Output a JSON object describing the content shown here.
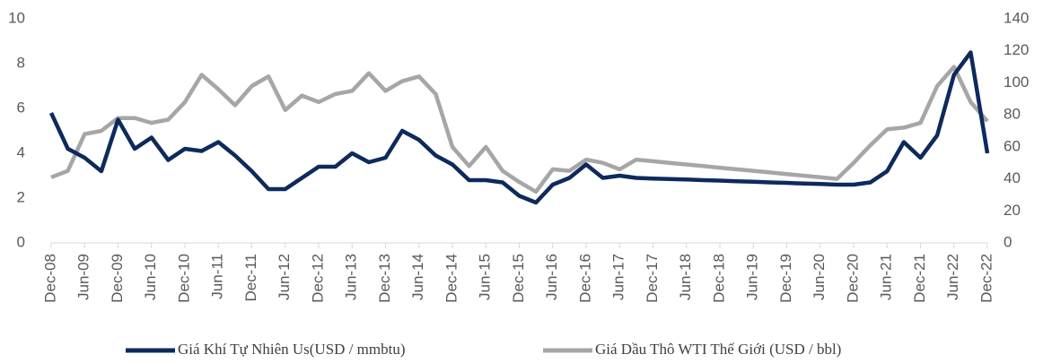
{
  "chart_data": {
    "type": "line",
    "categories": [
      "Dec-08",
      null,
      "Jun-09",
      null,
      "Dec-09",
      null,
      "Jun-10",
      null,
      "Dec-10",
      null,
      "Jun-11",
      null,
      "Dec-11",
      null,
      "Jun-12",
      null,
      "Dec-12",
      null,
      "Jun-13",
      null,
      "Dec-13",
      null,
      "Jun-14",
      null,
      "Dec-14",
      null,
      "Jun-15",
      null,
      "Dec-15",
      null,
      "Jun-16",
      null,
      "Dec-16",
      null,
      "Jun-17",
      null,
      "Dec-17",
      null,
      "Jun-18",
      null,
      "Dec-18",
      null,
      "Jun-19",
      null,
      "Dec-19",
      null,
      "Jun-20",
      null,
      "Dec-20",
      null,
      "Jun-21",
      null,
      "Dec-21",
      null,
      "Jun-22",
      null,
      "Dec-22"
    ],
    "series": [
      {
        "name": "Giá Khí Tự Nhiên Us(USD / mmbtu)",
        "color": "#0d2a5c",
        "axis": "y",
        "values": [
          5.8,
          4.2,
          3.8,
          3.2,
          5.5,
          4.2,
          4.7,
          3.7,
          4.2,
          4.1,
          4.5,
          3.9,
          3.2,
          2.4,
          2.4,
          2.9,
          3.4,
          3.4,
          4.0,
          3.6,
          3.8,
          5.0,
          4.6,
          3.9,
          3.5,
          2.8,
          2.8,
          2.7,
          2.1,
          1.8,
          2.6,
          2.9,
          3.5,
          2.9,
          3.0,
          2.9,
          2.87,
          2.85,
          2.83,
          2.8,
          2.78,
          2.75,
          2.73,
          2.7,
          2.68,
          2.65,
          2.63,
          2.6,
          2.6,
          2.7,
          3.2,
          4.5,
          3.8,
          4.8,
          7.5,
          8.5,
          4.0
        ]
      },
      {
        "name": "Giá Dầu Thô WTI Thế Giới (USD / bbl)",
        "color": "#a6a6a6",
        "axis": "y2",
        "values": [
          41,
          45,
          68,
          70,
          78,
          78,
          75,
          77,
          88,
          105,
          96,
          86,
          98,
          104,
          83,
          92,
          88,
          93,
          95,
          106,
          95,
          101,
          104,
          93,
          60,
          48,
          60,
          45,
          38,
          32,
          46,
          45,
          52,
          50,
          46,
          52,
          51,
          50,
          49,
          48,
          47,
          46,
          45,
          44,
          43,
          42,
          41,
          40,
          50,
          61,
          71,
          72,
          75,
          98,
          110,
          88,
          76
        ]
      }
    ],
    "ylim": [
      0,
      10
    ],
    "yticks": [
      0,
      2,
      4,
      6,
      8,
      10
    ],
    "y2lim": [
      0,
      140
    ],
    "y2ticks": [
      0,
      20,
      40,
      60,
      80,
      100,
      120,
      140
    ],
    "grid": false,
    "legend": "bottom"
  }
}
